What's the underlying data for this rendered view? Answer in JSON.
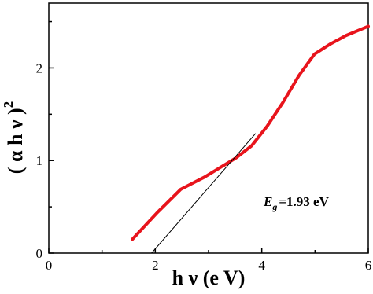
{
  "chart_data": {
    "type": "line",
    "x_label": "h ν (e V)",
    "y_label": {
      "text": "( α h ν )",
      "superscript": "2"
    },
    "annotation": {
      "symbol": "E",
      "subscript": "g",
      "text": "=1.93 eV"
    },
    "xlim": [
      0,
      6
    ],
    "xticks": [
      0,
      2,
      4,
      6
    ],
    "xminor": [
      1,
      3,
      5
    ],
    "ylim": [
      0,
      2.7
    ],
    "yticks": [
      0,
      1,
      2
    ],
    "yminor": [
      0.5,
      1.5,
      2.5
    ],
    "series": [
      {
        "color": "#e8141c",
        "width": 4,
        "x": [
          1.57,
          2.04,
          2.48,
          2.92,
          3.52,
          3.81,
          4.1,
          4.4,
          4.7,
          4.99,
          5.29,
          5.58,
          6.0
        ],
        "values": [
          0.15,
          0.44,
          0.69,
          0.82,
          1.03,
          1.16,
          1.37,
          1.63,
          1.92,
          2.15,
          2.26,
          2.35,
          2.45
        ]
      },
      {
        "color": "#000000",
        "width": 1,
        "x": [
          1.93,
          3.88
        ],
        "values": [
          0,
          1.29
        ]
      }
    ]
  }
}
